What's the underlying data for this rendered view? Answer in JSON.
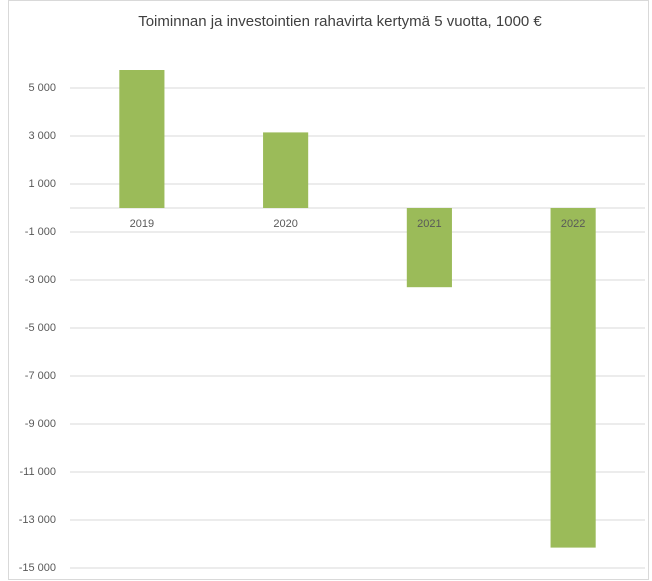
{
  "chart_data": {
    "type": "bar",
    "title": "Toiminnan ja investointien rahavirta kertymä 5 vuotta, 1000 €",
    "categories": [
      "2019",
      "2020",
      "2021",
      "2022"
    ],
    "values": [
      5750,
      3150,
      -3300,
      -14150
    ],
    "color": "#9bbb59",
    "ylim": [
      -15000,
      7000
    ],
    "yticks": [
      {
        "value": 5000,
        "label": "5 000"
      },
      {
        "value": 3000,
        "label": "3 000"
      },
      {
        "value": 1000,
        "label": "1 000"
      },
      {
        "value": -1000,
        "label": "-1 000"
      },
      {
        "value": -3000,
        "label": "-3 000"
      },
      {
        "value": -5000,
        "label": "-5 000"
      },
      {
        "value": -7000,
        "label": "-7 000"
      },
      {
        "value": -9000,
        "label": "-9 000"
      },
      {
        "value": -11000,
        "label": "-11 000"
      },
      {
        "value": -13000,
        "label": "-13 000"
      },
      {
        "value": -15000,
        "label": "-15 000"
      }
    ],
    "grid": true
  }
}
